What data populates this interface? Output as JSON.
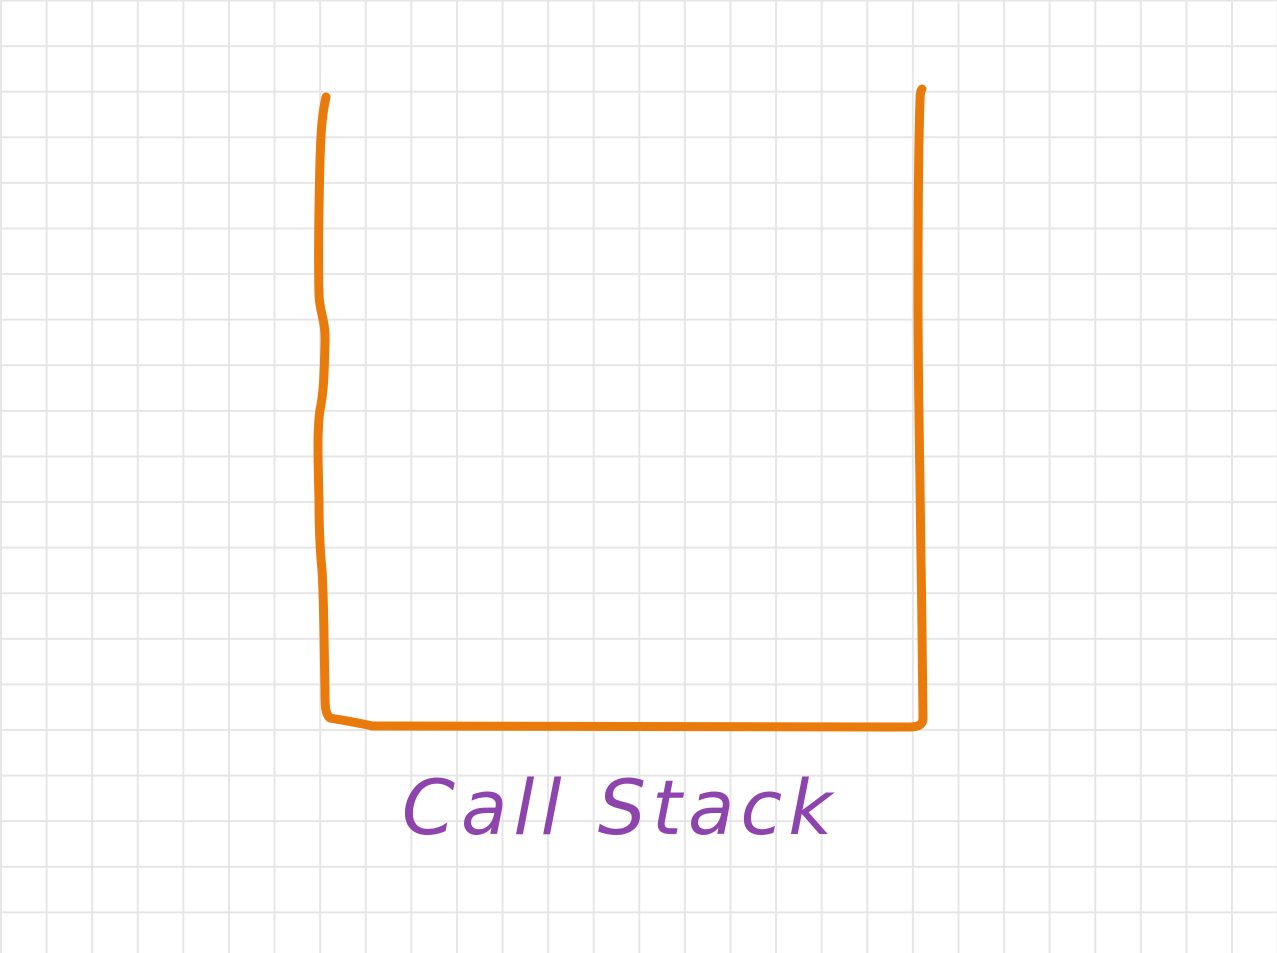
{
  "diagram": {
    "label": "Call Stack",
    "colors": {
      "container_stroke": "#e87b0c",
      "label": "#8e44ad",
      "grid": "#e6e6e6",
      "background": "#ffffff"
    }
  }
}
